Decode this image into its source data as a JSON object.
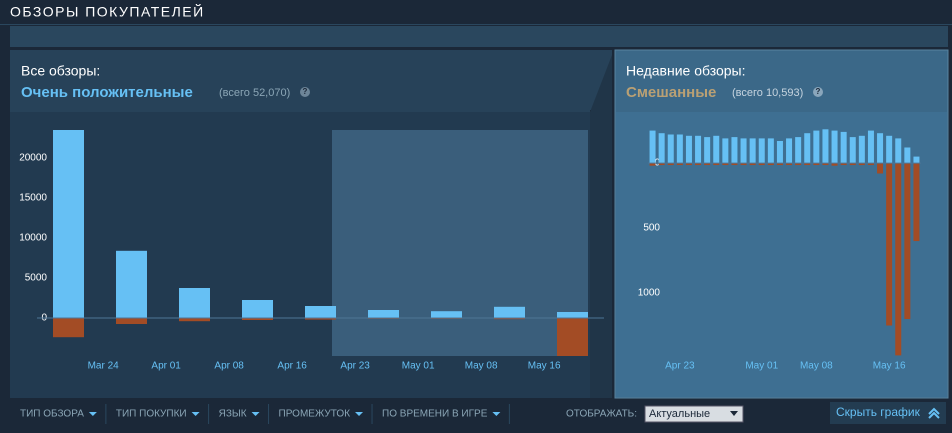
{
  "header": {
    "title": "ОБЗОРЫ ПОКУПАТЕЛЕЙ"
  },
  "summary": {
    "all": {
      "label": "Все обзоры:",
      "rating": "Очень положительные",
      "total": "(всего 52,070)",
      "help": "?"
    },
    "recent": {
      "label": "Недавние обзоры:",
      "rating": "Смешанные",
      "total": "(всего 10,593)",
      "help": "?"
    }
  },
  "chart_data": [
    {
      "type": "bar",
      "stacked_sign": true,
      "categories": [
        null,
        "Mar 24",
        "Apr 01",
        "Apr 08",
        "Apr 16",
        "Apr 23",
        "May 01",
        "May 08",
        "May 16"
      ],
      "series": [
        {
          "color": "#66c0f4",
          "values": [
            23500,
            8400,
            3750,
            2250,
            1500,
            1000,
            850,
            1400,
            750
          ]
        },
        {
          "color": "#a34c25",
          "values": [
            -2400,
            -750,
            -400,
            -250,
            -200,
            -100,
            -100,
            -150,
            -4750
          ]
        }
      ],
      "ylim": [
        -5000,
        24000
      ],
      "yticks": [
        0,
        5000,
        10000,
        15000,
        20000
      ]
    },
    {
      "type": "bar",
      "stacked_sign": true,
      "categories": [
        null,
        null,
        null,
        "Apr 23",
        null,
        null,
        null,
        null,
        null,
        null,
        null,
        null,
        "May 01",
        null,
        null,
        null,
        null,
        null,
        "May 08",
        null,
        null,
        null,
        null,
        null,
        null,
        null,
        "May 16",
        null,
        null,
        null
      ],
      "series": [
        {
          "color": "#66c0f4",
          "values": [
            250,
            230,
            220,
            220,
            210,
            210,
            200,
            210,
            190,
            200,
            190,
            190,
            190,
            190,
            170,
            190,
            200,
            230,
            250,
            260,
            250,
            240,
            200,
            210,
            250,
            230,
            210,
            190,
            120,
            50
          ]
        },
        {
          "color": "#a34c25",
          "values": [
            -20,
            -15,
            -15,
            -15,
            -15,
            -15,
            -15,
            -15,
            -15,
            -15,
            -15,
            -15,
            -15,
            -15,
            -15,
            -15,
            -15,
            -15,
            -15,
            -15,
            -20,
            -15,
            -15,
            -15,
            -15,
            -80,
            -1250,
            -1480,
            -1200,
            -600
          ]
        }
      ],
      "ylim": [
        -1500,
        270
      ],
      "yticks": [
        0,
        {
          "value": -500,
          "label": "500"
        },
        {
          "value": -1000,
          "label": "1000"
        }
      ]
    }
  ],
  "filters": [
    "ТИП ОБЗОРА",
    "ТИП ПОКУПКИ",
    "ЯЗЫК",
    "ПРОМЕЖУТОК",
    "ПО ВРЕМЕНИ В ИГРЕ"
  ],
  "display": {
    "label": "ОТОБРАЖАТЬ:",
    "value": "Актуальные"
  },
  "hide_button": "Скрыть график"
}
